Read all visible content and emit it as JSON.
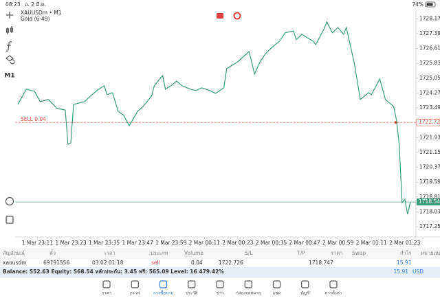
{
  "status_bar": {
    "time": "08:23",
    "date": "อ. 2 มี.ค.",
    "battery": "74%"
  },
  "toolbar": {
    "timeframe": "M1"
  },
  "chart_data": {
    "type": "line",
    "title": "XAUUSDm • M1",
    "subtitle": "Gold (6-49)",
    "color": "#3a9b7a",
    "x": [
      "1 Mar 23:04",
      "1 Mar 23:07",
      "1 Mar 23:10",
      "1 Mar 23:12",
      "1 Mar 23:15",
      "1 Mar 23:18",
      "1 Mar 23:21",
      "1 Mar 23:22",
      "1 Mar 23:23",
      "1 Mar 23:24",
      "1 Mar 23:28",
      "1 Mar 23:30",
      "1 Mar 23:33",
      "1 Mar 23:35",
      "1 Mar 23:36",
      "1 Mar 23:38",
      "1 Mar 23:40",
      "1 Mar 23:42",
      "1 Mar 23:44",
      "1 Mar 23:47",
      "1 Mar 23:49",
      "1 Mar 23:52",
      "1 Mar 23:53",
      "1 Mar 23:56",
      "1 Mar 23:57",
      "1 Mar 23:59",
      "2 Mar 00:01",
      "2 Mar 00:03",
      "2 Mar 00:06",
      "2 Mar 00:08",
      "2 Mar 00:10",
      "2 Mar 00:13",
      "2 Mar 00:15",
      "2 Mar 00:18",
      "2 Mar 00:19",
      "2 Mar 00:23",
      "2 Mar 00:27",
      "2 Mar 00:28",
      "2 Mar 00:29",
      "2 Mar 00:31",
      "2 Mar 00:33",
      "2 Mar 00:35",
      "2 Mar 00:38",
      "2 Mar 00:40",
      "2 Mar 00:43",
      "2 Mar 00:44",
      "2 Mar 00:46",
      "2 Mar 00:50",
      "2 Mar 00:51",
      "2 Mar 00:54",
      "2 Mar 00:55",
      "2 Mar 00:57",
      "2 Mar 00:59",
      "2 Mar 01:01",
      "2 Mar 01:02",
      "2 Mar 01:05",
      "2 Mar 01:07",
      "2 Mar 01:10",
      "2 Mar 01:11",
      "2 Mar 01:14",
      "2 Mar 01:16",
      "2 Mar 01:19",
      "2 Mar 01:20",
      "2 Mar 01:21",
      "2 Mar 01:22",
      "2 Mar 01:23",
      "2 Mar 01:24",
      "2 Mar 01:25"
    ],
    "values": [
      1723.67,
      1724.47,
      1724.36,
      1723.82,
      1723.93,
      1723.46,
      1723.38,
      1721.58,
      1721.65,
      1723.67,
      1723.82,
      1724.11,
      1724.47,
      1724.65,
      1724.18,
      1724.29,
      1723.31,
      1723.1,
      1722.55,
      1723.31,
      1723.56,
      1724.11,
      1724.65,
      1725.19,
      1724.47,
      1724.65,
      1724.9,
      1724.65,
      1724.47,
      1724.4,
      1724.54,
      1724.4,
      1724.25,
      1724.54,
      1725.55,
      1725.91,
      1726.45,
      1725.91,
      1725.26,
      1725.91,
      1726.34,
      1726.63,
      1726.99,
      1727.43,
      1727.53,
      1727.07,
      1727.35,
      1726.99,
      1726.81,
      1727.64,
      1728.0,
      1727.43,
      1727.71,
      1727.35,
      1727.71,
      1725.73,
      1723.93,
      1724.29,
      1724.18,
      1725.01,
      1723.93,
      1723.56,
      1722.84,
      1721.58,
      1718.51,
      1718.69,
      1717.9,
      1718.55
    ],
    "xlim": [
      "1 Mar 23:03",
      "2 Mar 01:27"
    ],
    "xticks": [
      "1 Mar 23:11",
      "1 Mar 23:23",
      "1 Mar 23:35",
      "1 Mar 23:47",
      "1 Mar 23:59",
      "2 Mar 00:11",
      "2 Mar 00:23",
      "2 Mar 00:35",
      "2 Mar 00:47",
      "2 Mar 00:59",
      "2 Mar 01:11",
      "2 Mar 01:23"
    ],
    "ylim": [
      1716.71,
      1728.65
    ],
    "yticks": [
      {
        "value": 1728.17,
        "label": "1728.170"
      },
      {
        "value": 1727.39,
        "label": "1727.390"
      },
      {
        "value": 1726.61,
        "label": "1726.610"
      },
      {
        "value": 1725.83,
        "label": "1725.830"
      },
      {
        "value": 1725.05,
        "label": "1725.050"
      },
      {
        "value": 1724.27,
        "label": "1724.270"
      },
      {
        "value": 1723.49,
        "label": "1723.490"
      },
      {
        "value": 1721.93,
        "label": "1721.930"
      },
      {
        "value": 1721.15,
        "label": "1721.150"
      },
      {
        "value": 1720.37,
        "label": "1720.370"
      },
      {
        "value": 1719.59,
        "label": "1719.590"
      },
      {
        "value": 1718.81,
        "label": "1718.810"
      },
      {
        "value": 1718.03,
        "label": "1718.030"
      },
      {
        "value": 1717.25,
        "label": "1717.250"
      }
    ],
    "position": {
      "label": "SELL 0.04",
      "price": {
        "value": 1722.726,
        "label": "1722.726"
      },
      "color": "#e05040"
    },
    "last_price": {
      "value": 1718.547,
      "label": "1718.547"
    }
  },
  "table": {
    "headers": [
      "สัญลักษณ์",
      "ตั๋ว",
      "เวลา",
      "ประเภท",
      "Volume",
      "S/L",
      "T/P",
      "ราคา",
      "Swap",
      "กำไร",
      "หมายเหตุ"
    ],
    "row": [
      "xauusdm",
      "69791556",
      "03.02 01:18",
      "sell",
      "0.04",
      "1722.726",
      "1718.747",
      "15.91"
    ]
  },
  "balance": {
    "summary": "Balance: 552.63 Equity: 568.54 หลักประกัน: 3.45 ฟรี: 565.09 Level: 16 479.42%",
    "profit": "15.91",
    "currency": "USD"
  },
  "tabs": [
    "ราคา",
    "กราฟ",
    "การซื้อขาย",
    "ประวัติ",
    "ข่าว",
    "กล่องจดหมาย",
    "แชท",
    "บัญชี",
    "การตั้งค่า"
  ]
}
